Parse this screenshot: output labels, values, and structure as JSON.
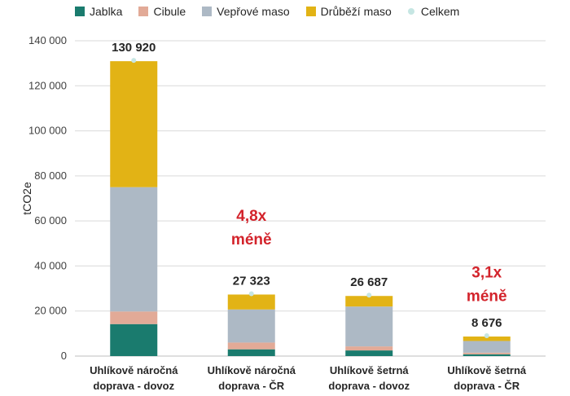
{
  "chart_data": {
    "type": "bar",
    "stacked": true,
    "ylabel": "tCO2e",
    "ylim": [
      0,
      140000
    ],
    "yticks": [
      "0",
      "20 000",
      "40 000",
      "60 000",
      "80 000",
      "100 000",
      "120 000",
      "140 000"
    ],
    "grid": true,
    "legend_position": "top",
    "categories": [
      [
        "Uhlíkově náročná",
        "doprava - dovoz"
      ],
      [
        "Uhlíkově náročná",
        "doprava - ČR"
      ],
      [
        "Uhlíkově šetrná",
        "doprava - dovoz"
      ],
      [
        "Uhlíkově šetrná",
        "doprava - ČR"
      ]
    ],
    "series": [
      {
        "name": "Jablka",
        "color": "#1a7b6e",
        "values": [
          14200,
          3000,
          2500,
          800
        ]
      },
      {
        "name": "Cibule",
        "color": "#e2aa97",
        "values": [
          5600,
          3000,
          1800,
          700
        ]
      },
      {
        "name": "Vepřové maso",
        "color": "#adb9c5",
        "values": [
          55200,
          14700,
          17700,
          5200
        ]
      },
      {
        "name": "Drůběží maso",
        "color": "#e2b315",
        "values": [
          55920,
          6623,
          4687,
          1976
        ]
      }
    ],
    "totals_series": {
      "name": "Celkem",
      "color": "#c6e6e3"
    },
    "totals": [
      130920,
      27323,
      26687,
      8676
    ],
    "total_labels": [
      "130 920",
      "27 323",
      "26 687",
      "8 676"
    ],
    "annotations": [
      {
        "lines": [
          "4,8x",
          "méně"
        ],
        "category_index": 1,
        "value": 60000
      },
      {
        "lines": [
          "3,1x",
          "méně"
        ],
        "category_index": 3,
        "value": 35000
      }
    ]
  }
}
